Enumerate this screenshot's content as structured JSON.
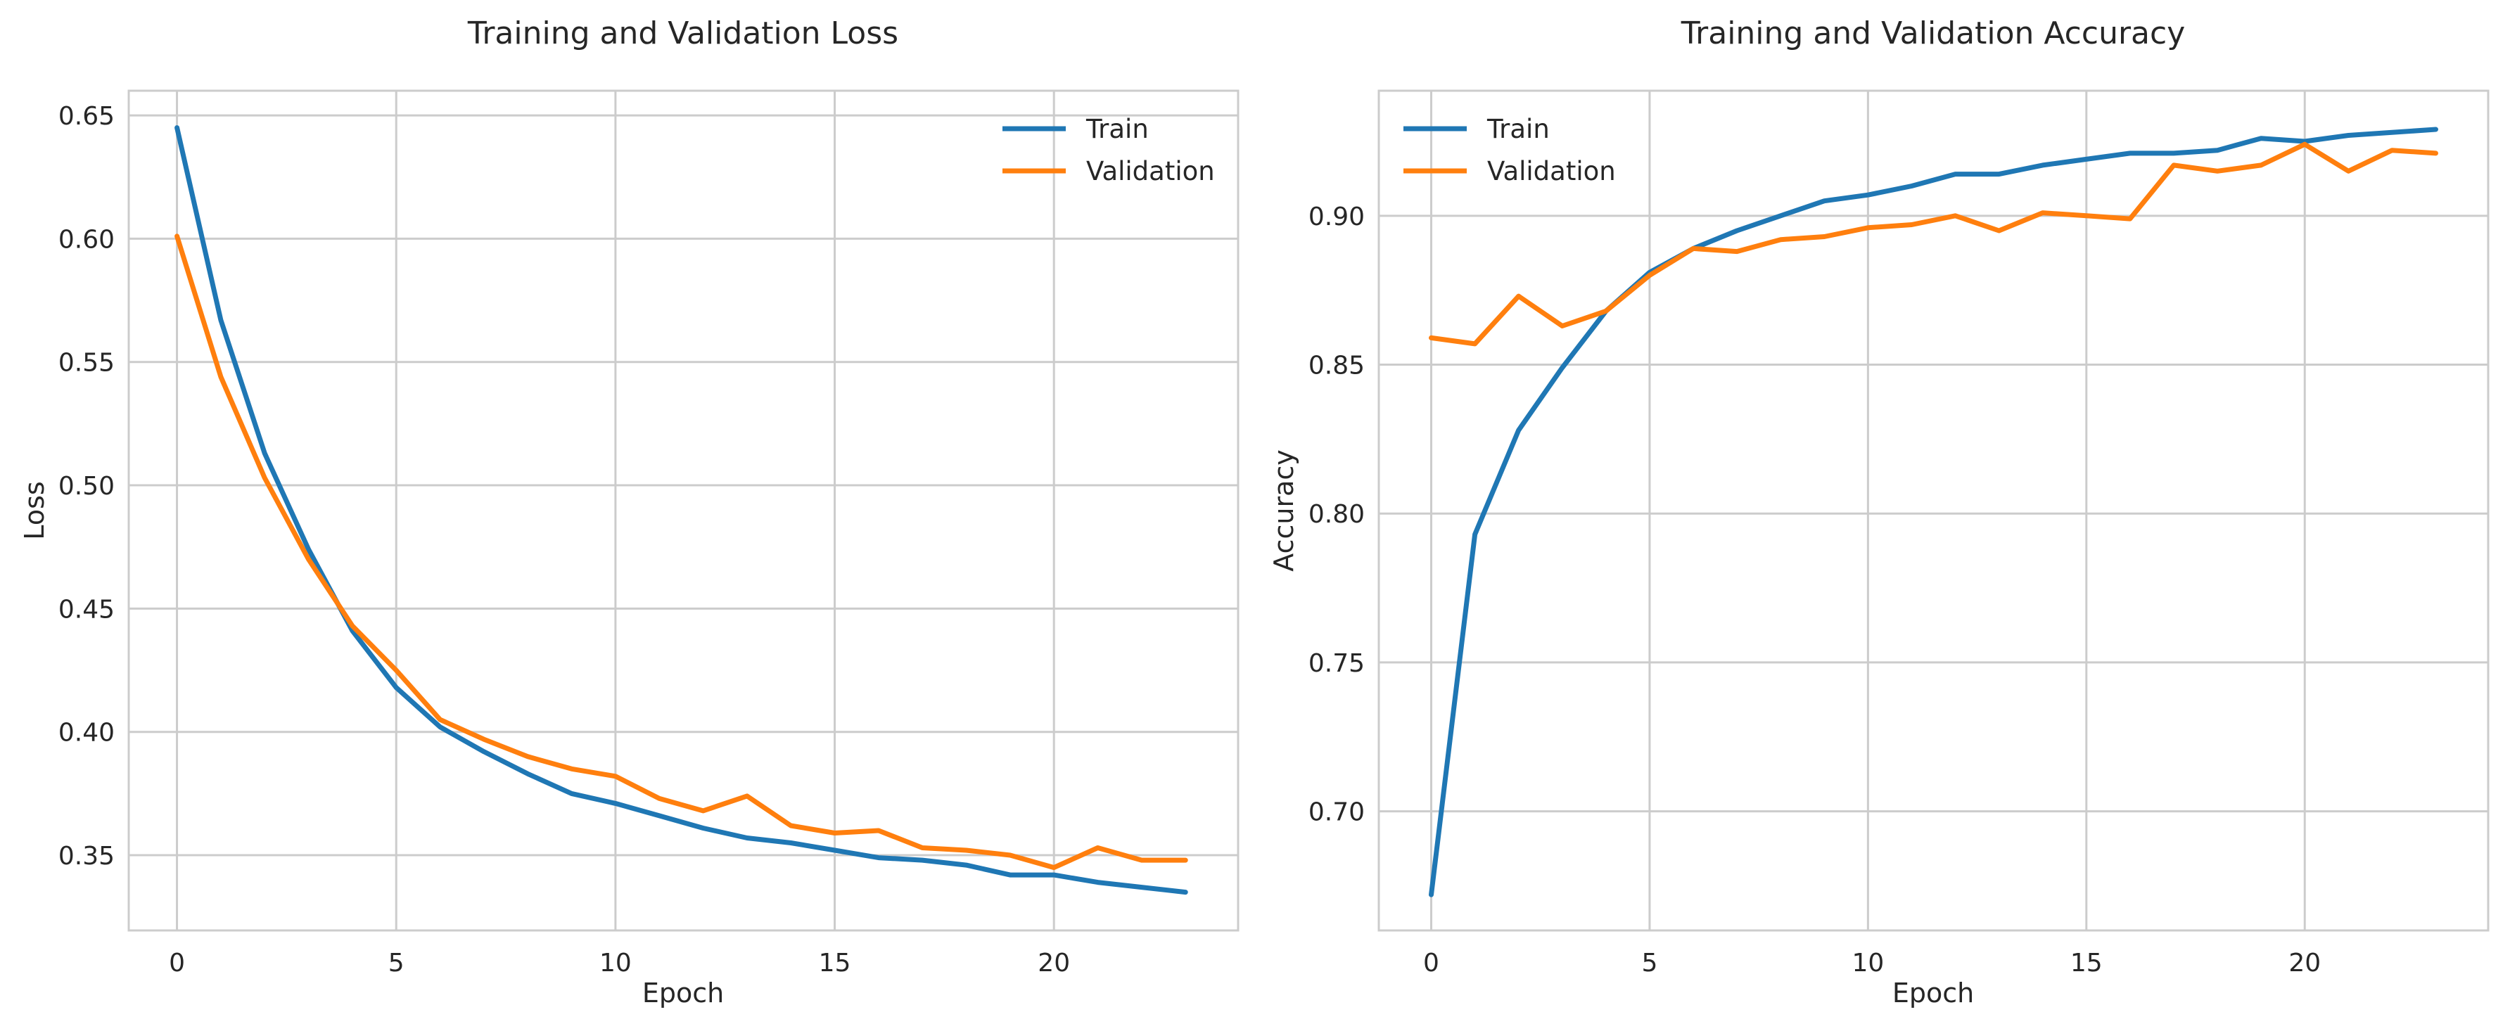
{
  "chart_data": [
    {
      "type": "line",
      "title": "Training and Validation Loss",
      "xlabel": "Epoch",
      "ylabel": "Loss",
      "xlim": [
        -1.1,
        24.2
      ],
      "ylim": [
        0.3195,
        0.66
      ],
      "xticks": [
        0,
        5,
        10,
        15,
        20
      ],
      "yticks": [
        0.35,
        0.4,
        0.45,
        0.5,
        0.55,
        0.6,
        0.65
      ],
      "grid": true,
      "legend_position": "top-right",
      "x": [
        0,
        1,
        2,
        3,
        4,
        5,
        6,
        7,
        8,
        9,
        10,
        11,
        12,
        13,
        14,
        15,
        16,
        17,
        18,
        19,
        20,
        21,
        22,
        23
      ],
      "series": [
        {
          "name": "Train",
          "color": "#1f77b4",
          "values": [
            0.645,
            0.567,
            0.513,
            0.474,
            0.441,
            0.418,
            0.402,
            0.392,
            0.383,
            0.375,
            0.371,
            0.366,
            0.361,
            0.357,
            0.355,
            0.352,
            0.349,
            0.348,
            0.346,
            0.342,
            0.342,
            0.339,
            0.337,
            0.335
          ]
        },
        {
          "name": "Validation",
          "color": "#ff7f0e",
          "values": [
            0.601,
            0.544,
            0.503,
            0.47,
            0.443,
            0.425,
            0.405,
            0.397,
            0.39,
            0.385,
            0.382,
            0.373,
            0.368,
            0.374,
            0.362,
            0.359,
            0.36,
            0.353,
            0.352,
            0.35,
            0.345,
            0.353,
            0.348,
            0.348
          ]
        }
      ]
    },
    {
      "type": "line",
      "title": "Training and Validation Accuracy",
      "xlabel": "Epoch",
      "ylabel": "Accuracy",
      "xlim": [
        -1.2,
        24.2
      ],
      "ylim": [
        0.66,
        0.942
      ],
      "xticks": [
        0,
        5,
        10,
        15,
        20
      ],
      "yticks": [
        0.7,
        0.75,
        0.8,
        0.85,
        0.9
      ],
      "grid": true,
      "legend_position": "top-left",
      "x": [
        0,
        1,
        2,
        3,
        4,
        5,
        6,
        7,
        8,
        9,
        10,
        11,
        12,
        13,
        14,
        15,
        16,
        17,
        18,
        19,
        20,
        21,
        22,
        23
      ],
      "series": [
        {
          "name": "Train",
          "color": "#1f77b4",
          "values": [
            0.672,
            0.793,
            0.828,
            0.849,
            0.868,
            0.881,
            0.889,
            0.895,
            0.9,
            0.905,
            0.907,
            0.91,
            0.914,
            0.914,
            0.917,
            0.919,
            0.921,
            0.921,
            0.922,
            0.926,
            0.925,
            0.927,
            0.928,
            0.929
          ]
        },
        {
          "name": "Validation",
          "color": "#ff7f0e",
          "values": [
            0.859,
            0.857,
            0.873,
            0.863,
            0.868,
            0.88,
            0.889,
            0.888,
            0.892,
            0.893,
            0.896,
            0.897,
            0.9,
            0.895,
            0.901,
            0.9,
            0.899,
            0.917,
            0.915,
            0.917,
            0.924,
            0.915,
            0.922,
            0.921
          ]
        }
      ]
    }
  ]
}
